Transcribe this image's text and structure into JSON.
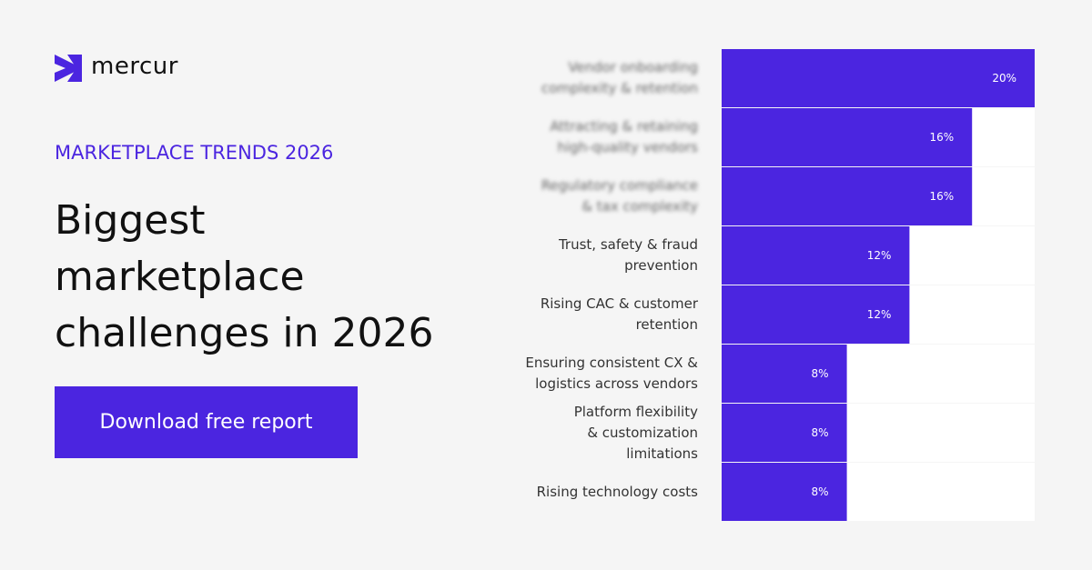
{
  "brand": "mercur",
  "eyebrow": "MARKETPLACE TRENDS 2026",
  "headline": "Biggest\nmarketplace\nchallenges in 2026",
  "button": "Download free report",
  "chart_data": {
    "type": "bar",
    "orientation": "horizontal",
    "categories": [
      "Vendor onboarding\ncomplexity & retention",
      "Attracting & retaining\nhigh-quality vendors",
      "Regulatory compliance\n& tax complexity",
      "Trust, safety & fraud\nprevention",
      "Rising CAC & customer\nretention",
      "Ensuring consistent CX &\nlogistics across vendors",
      "Platform flexibility\n& customization\nlimitations",
      "Rising technology costs"
    ],
    "values": [
      20,
      16,
      16,
      12,
      12,
      8,
      8,
      8
    ],
    "value_labels": [
      "20%",
      "16%",
      "16%",
      "12%",
      "12%",
      "8%",
      "8%",
      "8%"
    ],
    "color": "#4b25e0",
    "xlim": [
      0,
      20
    ]
  }
}
